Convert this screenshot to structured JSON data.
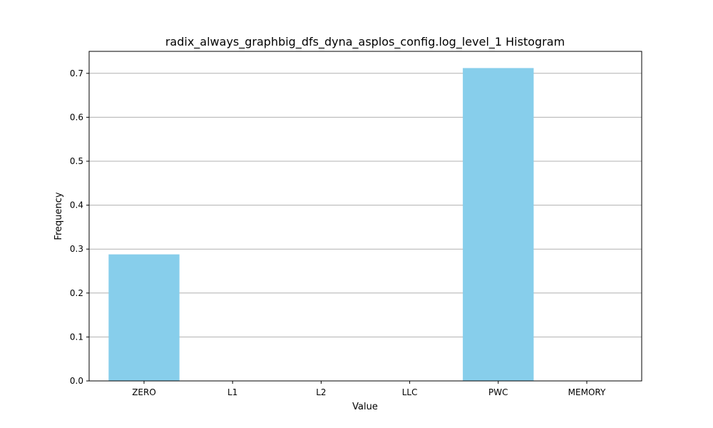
{
  "chart_data": {
    "type": "bar",
    "title": "radix_always_graphbig_dfs_dyna_asplos_config.log_level_1 Histogram",
    "xlabel": "Value",
    "ylabel": "Frequency",
    "categories": [
      "ZERO",
      "L1",
      "L2",
      "LLC",
      "PWC",
      "MEMORY"
    ],
    "values": [
      0.288,
      0.0,
      0.0,
      0.0,
      0.712,
      0.0
    ],
    "ylim": [
      0,
      0.75
    ],
    "yticks": [
      0.0,
      0.1,
      0.2,
      0.3,
      0.4,
      0.5,
      0.6,
      0.7
    ],
    "ytick_labels": [
      "0.0",
      "0.1",
      "0.2",
      "0.3",
      "0.4",
      "0.5",
      "0.6",
      "0.7"
    ],
    "grid": "y-major",
    "bar_color": "#87CEEB",
    "grid_color": "#b0b0b0"
  }
}
